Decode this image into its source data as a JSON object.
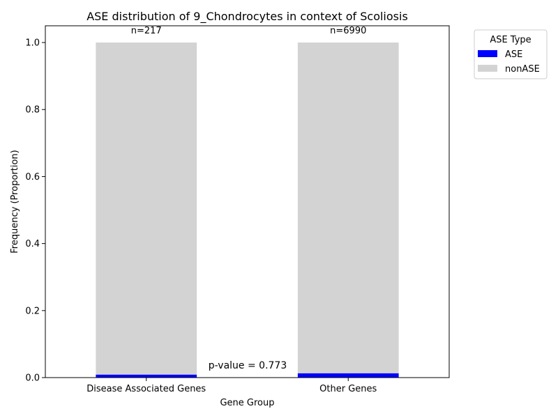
{
  "chart_data": {
    "type": "bar",
    "stacked": true,
    "title": "ASE distribution of 9_Chondrocytes in context of Scoliosis",
    "xlabel": "Gene Group",
    "ylabel": "Frequency (Proportion)",
    "ylim": [
      0,
      1.05
    ],
    "yticks": [
      "0.0",
      "0.2",
      "0.4",
      "0.6",
      "0.8",
      "1.0"
    ],
    "categories": [
      "Disease Associated Genes",
      "Other Genes"
    ],
    "series": [
      {
        "name": "ASE",
        "color": "#0000ff",
        "values": [
          0.009,
          0.013
        ]
      },
      {
        "name": "nonASE",
        "color": "#d3d3d3",
        "values": [
          0.991,
          0.987
        ]
      }
    ],
    "bar_annotations": [
      "n=217",
      "n=6990"
    ],
    "annotation": "p-value = 0.773",
    "legend": {
      "title": "ASE Type",
      "placement": "outside-top-right"
    },
    "grid": false
  }
}
